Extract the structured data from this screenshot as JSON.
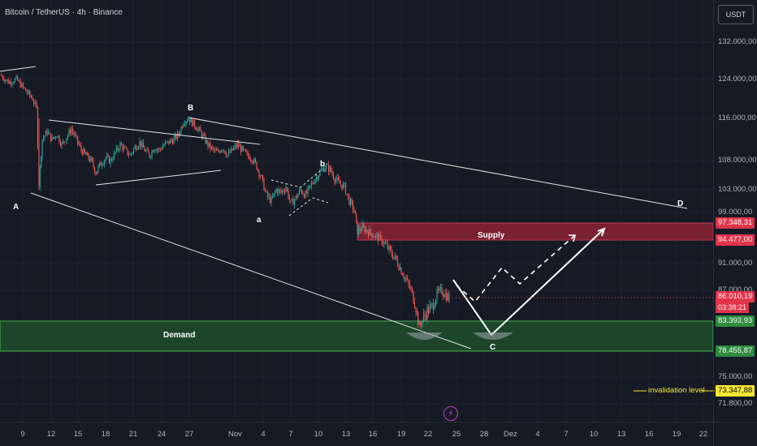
{
  "header": {
    "symbol_title": "Bitcoin / TetherUS · 4h · Binance",
    "currency_button": "USDT"
  },
  "chart_data": {
    "type": "candlestick",
    "title": "Bitcoin / TetherUS · 4h · Binance",
    "price_axis": {
      "ticks": [
        "132.000,00",
        "124.000,00",
        "116.000,00",
        "108.000,00",
        "103.000,00",
        "99.000,00",
        "91.000,00",
        "87.000,00",
        "75.000,00",
        "71.800,00"
      ],
      "range": [
        70000,
        138000
      ]
    },
    "time_axis": {
      "ticks": [
        "9",
        "12",
        "15",
        "18",
        "21",
        "24",
        "27",
        "Nov",
        "4",
        "7",
        "10",
        "13",
        "16",
        "19",
        "22",
        "25",
        "28",
        "Dez",
        "4",
        "7",
        "10",
        "13",
        "16",
        "19",
        "22"
      ]
    },
    "price_tags": [
      {
        "value": "97.348,31",
        "color": "#e0344a"
      },
      {
        "value": "94.477,00",
        "color": "#e0344a"
      },
      {
        "value": "86.010,19",
        "color": "#e0344a"
      },
      {
        "value": "83.393,93",
        "color": "#2e8b3e"
      },
      {
        "value": "78.455,87",
        "color": "#2e8b3e"
      },
      {
        "value": "73.347,88",
        "color": "#f7e733"
      }
    ],
    "countdown": "03:38:21",
    "zones": {
      "supply": {
        "label": "Supply",
        "from": 94477,
        "to": 97348,
        "color": "#8b2234"
      },
      "demand": {
        "label": "Demand",
        "from": 78456,
        "to": 83394,
        "color": "#1f4d2c"
      }
    },
    "wave_labels": [
      "A",
      "B",
      "a",
      "b",
      "C",
      "D"
    ],
    "invalidation": {
      "label": "invalidation level",
      "value": 73347.88
    },
    "price_path": [
      [
        0,
        125000
      ],
      [
        10,
        123500
      ],
      [
        20,
        124000
      ],
      [
        30,
        122000
      ],
      [
        40,
        120000
      ],
      [
        45,
        118000
      ],
      [
        48,
        104000
      ],
      [
        52,
        112000
      ],
      [
        58,
        113500
      ],
      [
        64,
        112000
      ],
      [
        70,
        113000
      ],
      [
        76,
        111000
      ],
      [
        82,
        112500
      ],
      [
        88,
        114000
      ],
      [
        94,
        112000
      ],
      [
        100,
        110000
      ],
      [
        106,
        109000
      ],
      [
        112,
        108000
      ],
      [
        118,
        106000
      ],
      [
        124,
        107500
      ],
      [
        130,
        108500
      ],
      [
        136,
        108000
      ],
      [
        142,
        109500
      ],
      [
        148,
        111000
      ],
      [
        154,
        110000
      ],
      [
        160,
        109000
      ],
      [
        166,
        110500
      ],
      [
        172,
        111500
      ],
      [
        178,
        110000
      ],
      [
        184,
        109000
      ],
      [
        190,
        110500
      ],
      [
        196,
        110000
      ],
      [
        202,
        111000
      ],
      [
        208,
        111500
      ],
      [
        214,
        112000
      ],
      [
        220,
        113000
      ],
      [
        226,
        115500
      ],
      [
        232,
        116000
      ],
      [
        238,
        115000
      ],
      [
        244,
        114000
      ],
      [
        250,
        112500
      ],
      [
        256,
        111000
      ],
      [
        262,
        110000
      ],
      [
        268,
        109500
      ],
      [
        274,
        110500
      ],
      [
        280,
        109000
      ],
      [
        286,
        110000
      ],
      [
        292,
        111000
      ],
      [
        298,
        110000
      ],
      [
        304,
        109000
      ],
      [
        310,
        108500
      ],
      [
        316,
        107000
      ],
      [
        322,
        105000
      ],
      [
        328,
        102000
      ],
      [
        334,
        101000
      ],
      [
        340,
        103000
      ],
      [
        346,
        102500
      ],
      [
        352,
        103500
      ],
      [
        358,
        100500
      ],
      [
        364,
        101500
      ],
      [
        370,
        103000
      ],
      [
        376,
        102000
      ],
      [
        382,
        103500
      ],
      [
        388,
        105000
      ],
      [
        394,
        106000
      ],
      [
        400,
        107000
      ],
      [
        406,
        106500
      ],
      [
        412,
        105000
      ],
      [
        418,
        104000
      ],
      [
        424,
        103500
      ],
      [
        430,
        101000
      ],
      [
        436,
        99500
      ],
      [
        440,
        96000
      ],
      [
        446,
        96500
      ],
      [
        452,
        96000
      ],
      [
        458,
        95500
      ],
      [
        464,
        95000
      ],
      [
        470,
        94500
      ],
      [
        476,
        93500
      ],
      [
        482,
        92500
      ],
      [
        488,
        91500
      ],
      [
        494,
        90000
      ],
      [
        500,
        88500
      ],
      [
        506,
        87000
      ],
      [
        512,
        85000
      ],
      [
        516,
        82500
      ],
      [
        520,
        83500
      ],
      [
        526,
        84500
      ],
      [
        532,
        85000
      ],
      [
        538,
        86500
      ],
      [
        544,
        87000
      ],
      [
        548,
        86500
      ],
      [
        553,
        86000
      ]
    ]
  }
}
